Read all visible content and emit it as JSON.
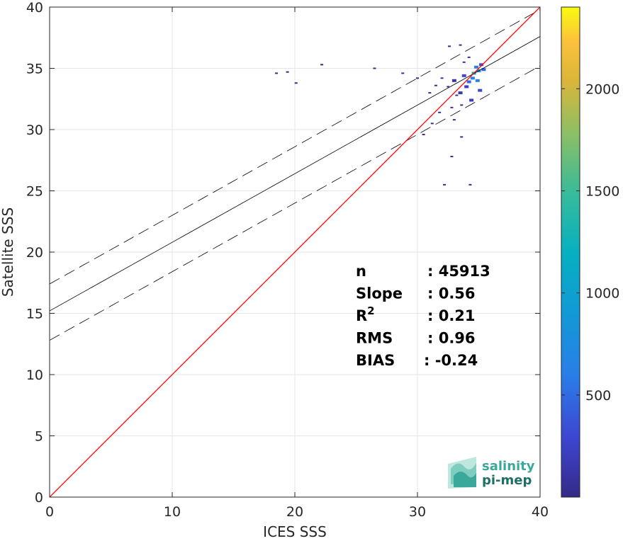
{
  "chart_data": {
    "type": "scatter",
    "subtype": "2d-density-histogram",
    "xlabel": "ICES SSS",
    "ylabel": "Satellite SSS",
    "xlim": [
      0,
      40
    ],
    "ylim": [
      0,
      40
    ],
    "xticks": [
      "0",
      "10",
      "20",
      "30",
      "40"
    ],
    "yticks": [
      "0",
      "5",
      "10",
      "15",
      "20",
      "25",
      "30",
      "35",
      "40"
    ],
    "grid": true,
    "lines": {
      "one_to_one": {
        "x": [
          0,
          40
        ],
        "y": [
          0,
          40
        ],
        "color": "#ff0000"
      },
      "regression": {
        "x": [
          0,
          40
        ],
        "y": [
          15.2,
          37.6
        ],
        "color": "#000000"
      },
      "upper_bound": {
        "x": [
          0,
          40
        ],
        "y": [
          17.4,
          39.8
        ],
        "color": "#000000",
        "dash": true
      },
      "lower_bound": {
        "x": [
          0,
          40
        ],
        "y": [
          12.8,
          35.2
        ],
        "color": "#000000",
        "dash": true
      }
    },
    "density_points": [
      [
        34.5,
        34.2,
        700
      ],
      [
        34.2,
        33.9,
        500
      ],
      [
        35.0,
        34.8,
        900
      ],
      [
        34.8,
        35.1,
        600
      ],
      [
        33.8,
        34.4,
        300
      ],
      [
        34.0,
        33.5,
        250
      ],
      [
        35.2,
        35.3,
        400
      ],
      [
        33.5,
        33.0,
        150
      ],
      [
        34.6,
        34.6,
        1200
      ],
      [
        33.0,
        34.0,
        120
      ],
      [
        32.5,
        33.5,
        80
      ],
      [
        32.0,
        34.2,
        60
      ],
      [
        33.2,
        32.8,
        90
      ],
      [
        34.9,
        34.0,
        650
      ],
      [
        35.4,
        34.9,
        450
      ],
      [
        32.8,
        31.8,
        50
      ],
      [
        33.6,
        32.0,
        40
      ],
      [
        31.5,
        33.6,
        40
      ],
      [
        31.0,
        33.0,
        30
      ],
      [
        30.5,
        29.6,
        20
      ],
      [
        31.2,
        30.5,
        25
      ],
      [
        33.0,
        30.8,
        30
      ],
      [
        32.6,
        36.8,
        20
      ],
      [
        33.5,
        36.9,
        20
      ],
      [
        34.2,
        35.9,
        60
      ],
      [
        33.8,
        35.5,
        80
      ],
      [
        30.0,
        34.2,
        15
      ],
      [
        28.8,
        34.6,
        10
      ],
      [
        26.5,
        35.0,
        10
      ],
      [
        22.2,
        35.3,
        10
      ],
      [
        18.5,
        34.6,
        10
      ],
      [
        19.4,
        34.7,
        10
      ],
      [
        20.1,
        33.8,
        10
      ],
      [
        32.8,
        27.8,
        10
      ],
      [
        32.2,
        25.5,
        10
      ],
      [
        34.3,
        25.5,
        10
      ],
      [
        33.6,
        29.4,
        12
      ],
      [
        31.8,
        31.4,
        30
      ],
      [
        34.4,
        32.4,
        200
      ],
      [
        35.1,
        33.2,
        300
      ]
    ],
    "colorbar": {
      "ticks": [
        "500",
        "1000",
        "1500",
        "2000"
      ],
      "min": 0,
      "max": 2400,
      "colormap": "parula"
    },
    "stats": [
      {
        "label": "n",
        "value": ": 45913"
      },
      {
        "label": "Slope",
        "value": ": 0.56"
      },
      {
        "label": "R",
        "sup": "2",
        "value": ": 0.21"
      },
      {
        "label": "RMS",
        "value": ": 0.96"
      },
      {
        "label": "BIAS",
        "value": ": -0.24"
      }
    ]
  },
  "logo": {
    "line1": "salinity",
    "line2": "pi-mep",
    "color1": "#3aa89a",
    "color2": "#1f6f64"
  }
}
